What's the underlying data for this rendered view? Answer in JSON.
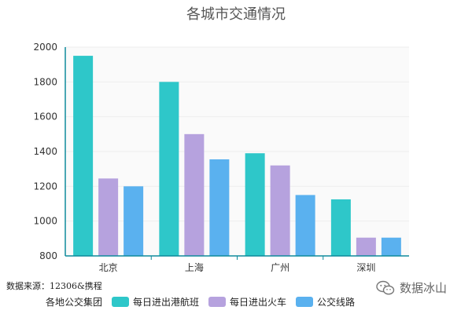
{
  "chart_data": {
    "type": "bar",
    "title": "各城市交通情况",
    "categories": [
      "北京",
      "上海",
      "广州",
      "深圳"
    ],
    "series": [
      {
        "name": "每日进出港航班",
        "values": [
          1950,
          1800,
          1390,
          1125
        ],
        "color": "#2ec7c9"
      },
      {
        "name": "每日进出火车",
        "values": [
          1245,
          1500,
          1320,
          905
        ],
        "color": "#b6a2de"
      },
      {
        "name": "公交线路",
        "values": [
          1200,
          1355,
          1150,
          905
        ],
        "color": "#5ab1ef"
      }
    ],
    "y_ticks": [
      "800",
      "1000",
      "1200",
      "1400",
      "1600",
      "1800",
      "2000"
    ],
    "ylim": [
      800,
      2000
    ],
    "xlabel": "",
    "ylabel": "",
    "grid": true,
    "legend_title": "各地公交集团",
    "legend_position": "bottom-left"
  },
  "source_note": "数据来源：12306&携程",
  "watermark": {
    "text": "数据冰山",
    "icon": "wechat-icon"
  }
}
